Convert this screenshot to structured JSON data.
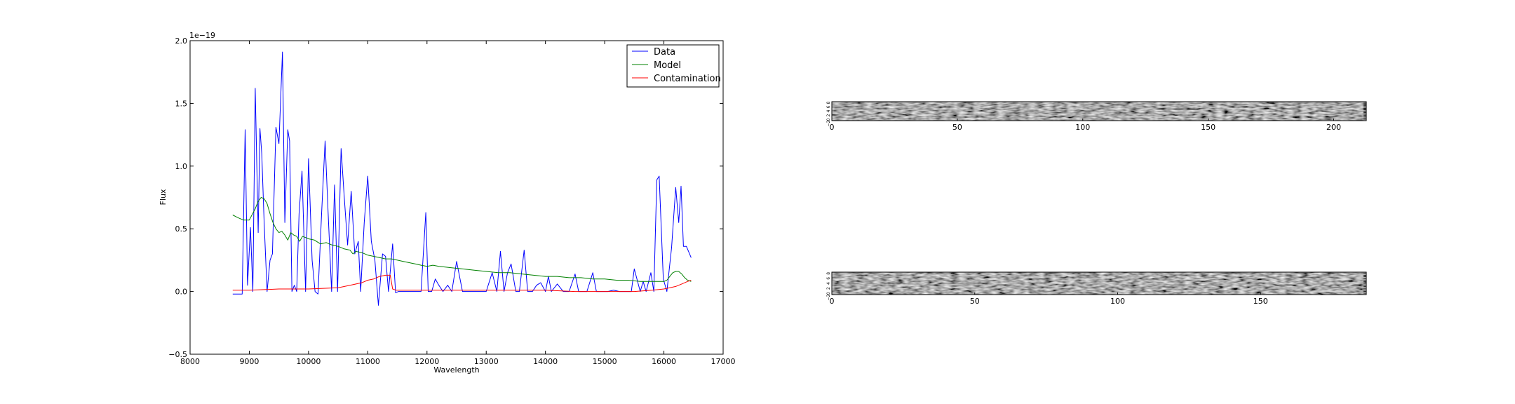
{
  "chart_data": [
    {
      "type": "line",
      "title": "",
      "xlabel": "Wavelength",
      "ylabel": "Flux",
      "offset_text": "1e−19",
      "xlim": [
        8000,
        17000
      ],
      "ylim": [
        -0.5,
        2.0
      ],
      "xticks": [
        8000,
        9000,
        10000,
        11000,
        12000,
        13000,
        14000,
        15000,
        16000,
        17000
      ],
      "xtick_labels": [
        "8000",
        "9000",
        "10000",
        "11000",
        "12000",
        "13000",
        "14000",
        "15000",
        "16000",
        "17000"
      ],
      "yticks": [
        -0.5,
        0.0,
        0.5,
        1.0,
        1.5,
        2.0
      ],
      "ytick_labels": [
        "−0.5",
        "0.0",
        "0.5",
        "1.0",
        "1.5",
        "2.0"
      ],
      "grid": false,
      "legend_position": "top-right",
      "series": [
        {
          "name": "Data",
          "color": "#0000ff",
          "x": [
            8720,
            8800,
            8880,
            8930,
            8970,
            9020,
            9060,
            9100,
            9150,
            9180,
            9210,
            9250,
            9300,
            9350,
            9390,
            9450,
            9500,
            9560,
            9600,
            9650,
            9680,
            9720,
            9760,
            9800,
            9840,
            9890,
            9950,
            10000,
            10060,
            10110,
            10160,
            10220,
            10280,
            10330,
            10390,
            10440,
            10490,
            10550,
            10600,
            10660,
            10720,
            10780,
            10840,
            10880,
            10940,
            11000,
            11060,
            11120,
            11180,
            11250,
            11300,
            11350,
            11420,
            11470,
            11520,
            11600,
            11700,
            11800,
            11900,
            11980,
            12020,
            12080,
            12140,
            12200,
            12270,
            12350,
            12420,
            12500,
            12600,
            12700,
            12850,
            13000,
            13100,
            13180,
            13240,
            13300,
            13360,
            13420,
            13500,
            13560,
            13640,
            13700,
            13780,
            13850,
            13920,
            14000,
            14050,
            14100,
            14200,
            14300,
            14400,
            14500,
            14560,
            14620,
            14700,
            14800,
            14860,
            14950,
            15050,
            15150,
            15250,
            15350,
            15450,
            15500,
            15600,
            15650,
            15700,
            15780,
            15830,
            15880,
            15920,
            15990,
            16050,
            16130,
            16200,
            16250,
            16290,
            16330,
            16380,
            16460
          ],
          "y": [
            -0.02,
            -0.02,
            -0.02,
            1.29,
            0.05,
            0.51,
            0.0,
            1.62,
            0.47,
            1.3,
            1.1,
            0.55,
            0.0,
            0.25,
            0.3,
            1.31,
            1.18,
            1.91,
            0.55,
            1.29,
            1.2,
            0.0,
            0.05,
            0.0,
            0.62,
            0.96,
            0.0,
            1.06,
            0.25,
            0.0,
            -0.02,
            0.62,
            1.2,
            0.63,
            0.0,
            0.85,
            0.0,
            1.14,
            0.77,
            0.37,
            0.8,
            0.3,
            0.4,
            0.0,
            0.55,
            0.92,
            0.4,
            0.25,
            -0.11,
            0.3,
            0.28,
            0.0,
            0.38,
            -0.01,
            0.0,
            0.0,
            0.0,
            0.0,
            0.0,
            0.63,
            0.0,
            0.0,
            0.1,
            0.05,
            0.0,
            0.05,
            0.0,
            0.24,
            0.0,
            0.0,
            0.0,
            0.0,
            0.15,
            0.0,
            0.32,
            0.0,
            0.15,
            0.22,
            0.0,
            0.0,
            0.33,
            0.0,
            0.0,
            0.05,
            0.07,
            0.0,
            0.12,
            0.0,
            0.06,
            0.0,
            0.0,
            0.14,
            0.0,
            0.0,
            0.0,
            0.15,
            0.0,
            0.0,
            0.0,
            0.01,
            0.0,
            0.0,
            0.0,
            0.18,
            0.0,
            0.08,
            0.0,
            0.15,
            0.0,
            0.89,
            0.92,
            0.1,
            0.0,
            0.35,
            0.83,
            0.55,
            0.84,
            0.36,
            0.36,
            0.27
          ]
        },
        {
          "name": "Model",
          "color": "#008000",
          "x": [
            8720,
            8800,
            8900,
            9000,
            9100,
            9150,
            9200,
            9250,
            9300,
            9350,
            9400,
            9450,
            9500,
            9550,
            9600,
            9650,
            9700,
            9750,
            9800,
            9850,
            9900,
            9950,
            10000,
            10100,
            10200,
            10300,
            10400,
            10500,
            10600,
            10700,
            10750,
            10800,
            10900,
            11000,
            11100,
            11200,
            11300,
            11400,
            11500,
            11600,
            11700,
            11800,
            11900,
            12000,
            12100,
            12200,
            12400,
            12600,
            12800,
            13000,
            13200,
            13400,
            13600,
            13800,
            14000,
            14200,
            14400,
            14600,
            14800,
            15000,
            15200,
            15400,
            15600,
            15800,
            15900,
            16000,
            16050,
            16100,
            16150,
            16200,
            16250,
            16300,
            16350,
            16400,
            16460
          ],
          "y": [
            0.61,
            0.59,
            0.57,
            0.57,
            0.66,
            0.72,
            0.75,
            0.74,
            0.7,
            0.62,
            0.55,
            0.5,
            0.47,
            0.48,
            0.45,
            0.41,
            0.47,
            0.45,
            0.44,
            0.4,
            0.44,
            0.43,
            0.42,
            0.41,
            0.38,
            0.39,
            0.37,
            0.36,
            0.34,
            0.33,
            0.3,
            0.32,
            0.31,
            0.29,
            0.28,
            0.27,
            0.26,
            0.26,
            0.25,
            0.24,
            0.23,
            0.22,
            0.21,
            0.2,
            0.21,
            0.2,
            0.19,
            0.18,
            0.17,
            0.16,
            0.15,
            0.15,
            0.14,
            0.13,
            0.12,
            0.12,
            0.11,
            0.11,
            0.1,
            0.1,
            0.09,
            0.09,
            0.08,
            0.08,
            0.08,
            0.08,
            0.09,
            0.12,
            0.15,
            0.16,
            0.16,
            0.14,
            0.11,
            0.09,
            0.08
          ]
        },
        {
          "name": "Contamination",
          "color": "#ff0000",
          "x": [
            8720,
            9000,
            9500,
            10000,
            10500,
            10700,
            10900,
            11000,
            11100,
            11200,
            11300,
            11380,
            11420,
            11480,
            11600,
            12000,
            12500,
            13000,
            13500,
            14000,
            14500,
            15000,
            15500,
            15800,
            16000,
            16100,
            16200,
            16300,
            16400,
            16460
          ],
          "y": [
            0.01,
            0.01,
            0.02,
            0.02,
            0.03,
            0.05,
            0.07,
            0.09,
            0.1,
            0.12,
            0.13,
            0.13,
            0.02,
            0.01,
            0.01,
            0.01,
            0.01,
            0.01,
            0.01,
            0.01,
            0.0,
            0.0,
            0.0,
            0.01,
            0.02,
            0.03,
            0.04,
            0.06,
            0.08,
            0.09
          ]
        }
      ]
    },
    {
      "type": "heatmap",
      "title": "",
      "colormap": "gray",
      "xlim": [
        0,
        213
      ],
      "xticks": [
        0,
        50,
        100,
        150,
        200
      ],
      "xtick_labels": [
        "0",
        "50",
        "100",
        "150",
        "200"
      ],
      "yticks": [
        -2,
        0,
        2,
        4,
        6,
        8
      ],
      "ytick_labels": [
        "−2",
        "0",
        "2",
        "4",
        "6",
        "8"
      ],
      "ylim": [
        -0.5,
        8.5
      ],
      "grid": false
    },
    {
      "type": "heatmap",
      "title": "",
      "colormap": "gray",
      "xlim": [
        0,
        187
      ],
      "xticks": [
        0,
        50,
        100,
        150
      ],
      "xtick_labels": [
        "0",
        "50",
        "100",
        "150"
      ],
      "yticks": [
        -2,
        0,
        2,
        4,
        6,
        8
      ],
      "ytick_labels": [
        "−2",
        "0",
        "2",
        "4",
        "6",
        "8"
      ],
      "ylim": [
        -0.5,
        8.5
      ],
      "grid": false
    }
  ]
}
